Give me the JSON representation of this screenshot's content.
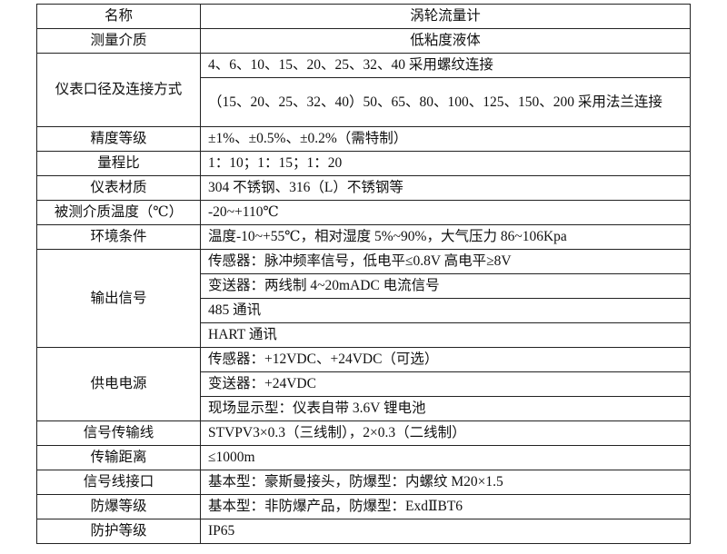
{
  "rows": [
    {
      "label": "名称",
      "values": [
        "涡轮流量计"
      ],
      "center": true
    },
    {
      "label": "测量介质",
      "values": [
        "低粘度液体"
      ],
      "center": true
    },
    {
      "label": "仪表口径及连接方式",
      "values": [
        "4、6、10、15、20、25、32、40 采用螺纹连接",
        "（15、20、25、32、40）50、65、80、100、125、150、200 采用法兰连接"
      ]
    },
    {
      "label": "精度等级",
      "values": [
        "±1%、±0.5%、±0.2%（需特制）"
      ]
    },
    {
      "label": "量程比",
      "values": [
        "1：10；1：15；1：20"
      ]
    },
    {
      "label": "仪表材质",
      "values": [
        "304 不锈钢、316（L）不锈钢等"
      ]
    },
    {
      "label": "被测介质温度（℃）",
      "values": [
        "-20~+110℃"
      ]
    },
    {
      "label": "环境条件",
      "values": [
        "温度-10~+55℃，相对湿度 5%~90%，大气压力 86~106Kpa"
      ]
    },
    {
      "label": "输出信号",
      "values": [
        "传感器：脉冲频率信号，低电平≤0.8V 高电平≥8V",
        "变送器：两线制 4~20mADC 电流信号",
        "485 通讯",
        "HART 通讯"
      ]
    },
    {
      "label": "供电电源",
      "values": [
        "传感器：+12VDC、+24VDC（可选）",
        "变送器：+24VDC",
        "现场显示型：仪表自带 3.6V 锂电池"
      ]
    },
    {
      "label": "信号传输线",
      "values": [
        "STVPV3×0.3（三线制），2×0.3（二线制）"
      ]
    },
    {
      "label": "传输距离",
      "values": [
        "≤1000m"
      ]
    },
    {
      "label": "信号线接口",
      "values": [
        "基本型：豪斯曼接头，防爆型：内螺纹 M20×1.5"
      ]
    },
    {
      "label": "防爆等级",
      "values": [
        "基本型：非防爆产品，防爆型：ExdⅡBT6"
      ]
    },
    {
      "label": "防护等级",
      "values": [
        "IP65"
      ]
    }
  ]
}
